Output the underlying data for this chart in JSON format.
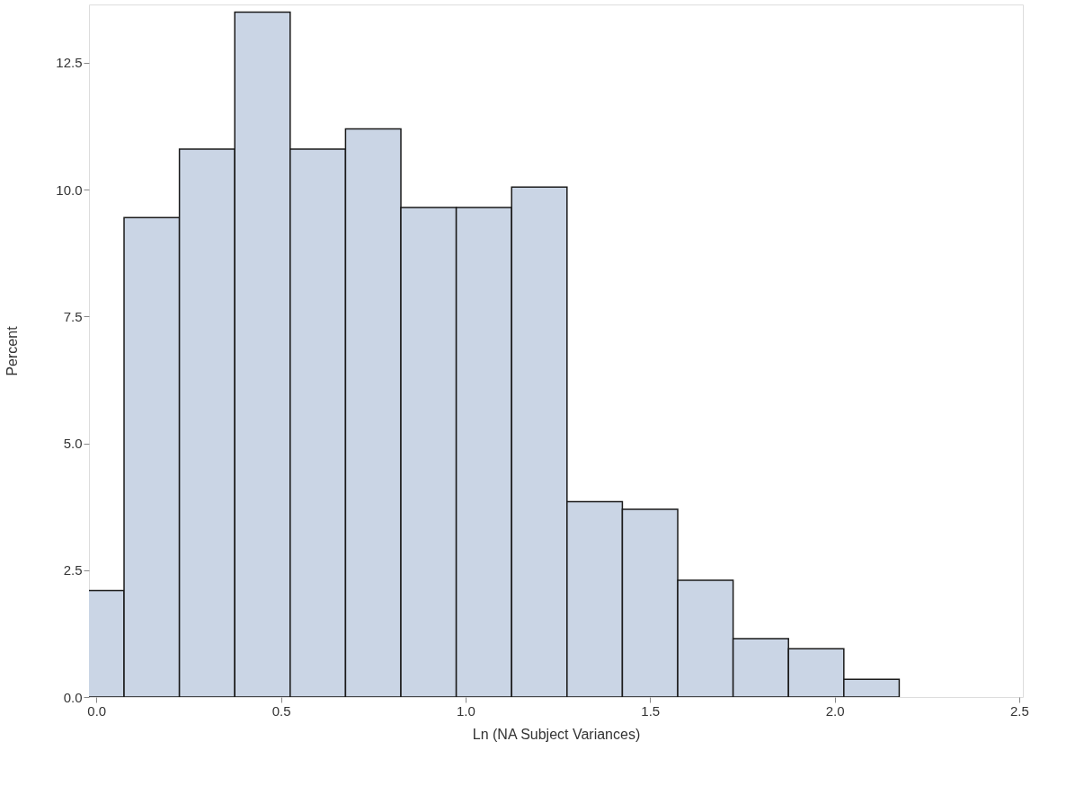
{
  "chart_data": {
    "type": "histogram",
    "xlabel": "Ln (NA Subject Variances)",
    "ylabel": "Percent",
    "bins": [
      -0.075,
      0.075,
      0.225,
      0.375,
      0.525,
      0.675,
      0.825,
      0.975,
      1.125,
      1.275,
      1.425,
      1.575,
      1.725,
      1.875,
      2.025,
      2.175
    ],
    "values": [
      2.1,
      9.45,
      10.8,
      13.5,
      10.8,
      11.2,
      9.65,
      9.65,
      10.05,
      3.85,
      3.7,
      2.3,
      1.15,
      0.95,
      0.35
    ],
    "color": "#cad5e5",
    "xlim": [
      -0.02,
      2.51
    ],
    "xticks": [
      {
        "value": 0,
        "label": "0.0"
      },
      0.5,
      {
        "value": 1,
        "label": "1.0"
      },
      1.5,
      {
        "value": 2,
        "label": "2.0"
      },
      2.5
    ],
    "ylim": [
      0,
      13.65
    ],
    "yticks": [
      {
        "value": 0,
        "label": "0.0"
      },
      2.5,
      {
        "value": 5,
        "label": "5.0"
      },
      7.5,
      {
        "value": 10,
        "label": "10.0"
      },
      12.5
    ]
  }
}
